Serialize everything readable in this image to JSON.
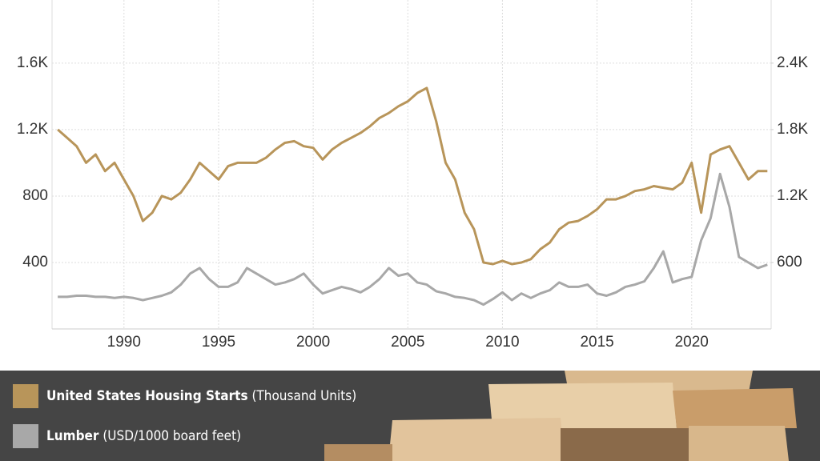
{
  "chart_data": {
    "type": "line",
    "x": [
      1986.5,
      1987,
      1987.5,
      1988,
      1988.5,
      1989,
      1989.5,
      1990,
      1990.5,
      1991,
      1991.5,
      1992,
      1992.5,
      1993,
      1993.5,
      1994,
      1994.5,
      1995,
      1995.5,
      1996,
      1996.5,
      1997,
      1997.5,
      1998,
      1998.5,
      1999,
      1999.5,
      2000,
      2000.5,
      2001,
      2001.5,
      2002,
      2002.5,
      2003,
      2003.5,
      2004,
      2004.5,
      2005,
      2005.5,
      2006,
      2006.5,
      2007,
      2007.5,
      2008,
      2008.5,
      2009,
      2009.5,
      2010,
      2010.5,
      2011,
      2011.5,
      2012,
      2012.5,
      2013,
      2013.5,
      2014,
      2014.5,
      2015,
      2015.5,
      2016,
      2016.5,
      2017,
      2017.5,
      2018,
      2018.5,
      2019,
      2019.5,
      2020,
      2020.5,
      2021,
      2021.5,
      2022,
      2022.5,
      2023,
      2023.5,
      2024
    ],
    "xlim": [
      1986.2,
      2024.2
    ],
    "xticks": [
      1990,
      1995,
      2000,
      2005,
      2010,
      2015,
      2020
    ],
    "ylim": [
      0,
      1980
    ],
    "yticks": [
      400,
      800,
      {
        "value": 1200,
        "label": "1.2K"
      },
      {
        "value": 1600,
        "label": "1.6K"
      }
    ],
    "y2lim": [
      0,
      2970
    ],
    "y2ticks": [
      600,
      {
        "value": 1200,
        "label": "1.2K"
      },
      {
        "value": 1800,
        "label": "1.8K"
      },
      {
        "value": 2400,
        "label": "2.4K"
      }
    ],
    "grid": true,
    "series": [
      {
        "name": "United States Housing Starts",
        "unit": "(Thousand Units)",
        "color": "#b8955a",
        "values": [
          1200,
          1150,
          1100,
          1000,
          1050,
          950,
          1000,
          900,
          800,
          650,
          700,
          800,
          780,
          820,
          900,
          1000,
          950,
          900,
          980,
          1000,
          1000,
          1000,
          1030,
          1080,
          1120,
          1130,
          1100,
          1090,
          1020,
          1080,
          1120,
          1150,
          1180,
          1220,
          1270,
          1300,
          1340,
          1370,
          1420,
          1450,
          1250,
          1000,
          900,
          700,
          600,
          400,
          390,
          410,
          390,
          400,
          420,
          480,
          520,
          600,
          640,
          650,
          680,
          720,
          780,
          780,
          800,
          830,
          840,
          860,
          850,
          840,
          880,
          1000,
          700,
          1050,
          1080,
          1100,
          1000,
          900,
          950,
          950
        ]
      },
      {
        "name": "Lumber",
        "unit": "(USD/1000 board feet)",
        "color": "#a8a8a8",
        "axis": "y2",
        "values": [
          290,
          290,
          300,
          300,
          290,
          290,
          280,
          290,
          280,
          260,
          280,
          300,
          330,
          400,
          500,
          550,
          450,
          380,
          380,
          420,
          550,
          500,
          450,
          400,
          420,
          450,
          500,
          400,
          320,
          350,
          380,
          360,
          330,
          380,
          450,
          550,
          480,
          500,
          420,
          400,
          340,
          320,
          290,
          280,
          260,
          220,
          270,
          330,
          260,
          320,
          280,
          320,
          350,
          420,
          380,
          380,
          400,
          320,
          300,
          330,
          380,
          400,
          430,
          550,
          700,
          420,
          450,
          470,
          800,
          1000,
          1400,
          1100,
          650,
          600,
          550,
          580
        ]
      }
    ]
  }
}
